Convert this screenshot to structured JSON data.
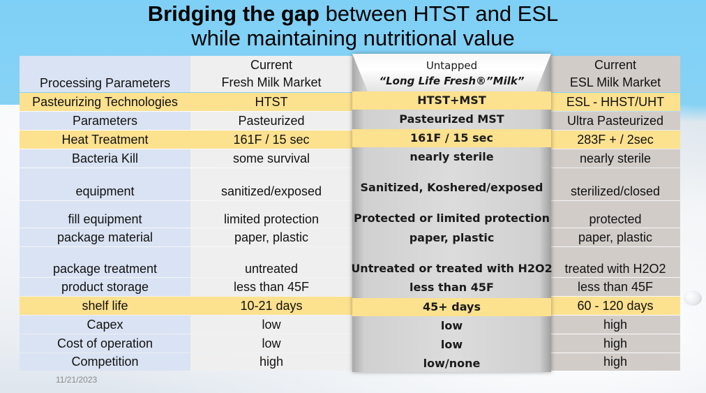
{
  "title": {
    "bold": "Bridging the gap",
    "line1_rest": " between HTST and ESL",
    "line2": "while maintaining nutritional value"
  },
  "columns": {
    "col1_header": "Processing Parameters",
    "col2_header_line1": "Current",
    "col2_header_line2": "Fresh Milk Market",
    "col3_header_line1": "Untapped",
    "col3_header_line2": "“Long Life Fresh®”Milk”",
    "col4_header_line1": "Current",
    "col4_header_line2": "ESL Milk Market"
  },
  "rows": [
    {
      "param": "Pasteurizing Technologies",
      "fresh": "HTST",
      "untapped": "HTST+MST",
      "esl": "ESL - HHST/UHT"
    },
    {
      "param": "Parameters",
      "fresh": "Pasteurized",
      "untapped": "Pasteurized MST",
      "esl": "Ultra Pasteurized"
    },
    {
      "param": "Heat Treatment",
      "fresh": "161F / 15 sec",
      "untapped": "161F / 15 sec",
      "esl": "283F + / 2sec"
    },
    {
      "param": "Bacteria Kill",
      "fresh": "some survival",
      "untapped": "nearly sterile",
      "esl": "nearly sterile"
    },
    {
      "param": "equipment",
      "fresh": "sanitized/exposed",
      "untapped": "Sanitized, Koshered/exposed",
      "esl": "sterilized/closed"
    },
    {
      "param": "fill equipment",
      "fresh": "limited protection",
      "untapped": "Protected  or limited protection",
      "esl": "protected"
    },
    {
      "param": "package material",
      "fresh": "paper, plastic",
      "untapped": "paper, plastic",
      "esl": "paper, plastic"
    },
    {
      "param": "package treatment",
      "fresh": "untreated",
      "untapped": "Untreated or treated with H2O2",
      "esl": "treated with H2O2"
    },
    {
      "param": "product storage",
      "fresh": "less than 45F",
      "untapped": "less than 45F",
      "esl": "less than 45F"
    },
    {
      "param": "shelf life",
      "fresh": "10-21 days",
      "untapped": "45+ days",
      "esl": "60 - 120 days"
    },
    {
      "param": "Capex",
      "fresh": "low",
      "untapped": "low",
      "esl": "high"
    },
    {
      "param": "Cost of operation",
      "fresh": "low",
      "untapped": "low",
      "esl": "high"
    },
    {
      "param": "Competition",
      "fresh": "high",
      "untapped": "low/none",
      "esl": "high"
    }
  ],
  "footer_date": "11/21/2023",
  "colors": {
    "highlight": "#fce18f",
    "param_column": "#dae3f3",
    "fresh_column": "#efefef",
    "esl_column": "#d2ccc9",
    "sky": "#7fd0f6"
  }
}
